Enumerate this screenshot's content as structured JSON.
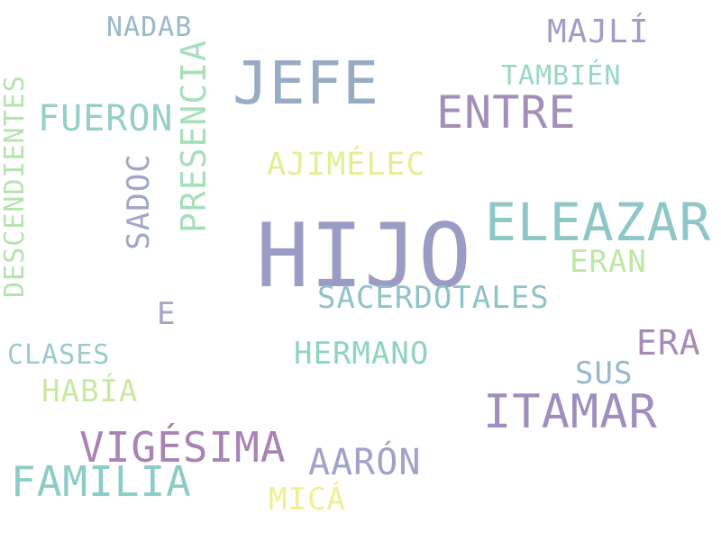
{
  "words": [
    {
      "text": "HIJO",
      "color": "#9B9CC3"
    },
    {
      "text": "JEFE",
      "color": "#97ABC2"
    },
    {
      "text": "ELEAZAR",
      "color": "#8FC6C6"
    },
    {
      "text": "ENTRE",
      "color": "#A48FB8"
    },
    {
      "text": "ITAMAR",
      "color": "#A08FBE"
    },
    {
      "text": "VIGÉSIMA",
      "color": "#A884B4"
    },
    {
      "text": "FAMILIA",
      "color": "#8CCCC7"
    },
    {
      "text": "FUERON",
      "color": "#95CFC5"
    },
    {
      "text": "MAJLÍ",
      "color": "#A49CC6"
    },
    {
      "text": "AJIMÉLEC",
      "color": "#E4EE95"
    },
    {
      "text": "SACERDOTALES",
      "color": "#8FC3C8"
    },
    {
      "text": "HERMANO",
      "color": "#8FD4C0"
    },
    {
      "text": "AARÓN",
      "color": "#A0A2C8"
    },
    {
      "text": "ERAN",
      "color": "#BDE7A2"
    },
    {
      "text": "ERA",
      "color": "#A68BB5"
    },
    {
      "text": "SUS",
      "color": "#98B8C9"
    },
    {
      "text": "TAMBIÉN",
      "color": "#98D8BE"
    },
    {
      "text": "NADAB",
      "color": "#9BB8C8"
    },
    {
      "text": "CLASES",
      "color": "#9BC9CC"
    },
    {
      "text": "HABÍA",
      "color": "#C8E9A0"
    },
    {
      "text": "MICÁ",
      "color": "#F0EF91"
    },
    {
      "text": "E",
      "color": "#A3A4C6"
    },
    {
      "text": "PRESENCIA",
      "color": "#A7DFBB"
    },
    {
      "text": "SADOC",
      "color": "#9FA6C6"
    },
    {
      "text": "DESCENDIENTES",
      "color": "#B6E2B0"
    }
  ]
}
